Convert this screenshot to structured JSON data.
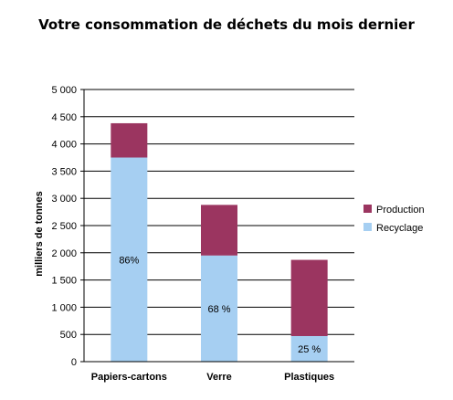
{
  "chart_data": {
    "type": "bar",
    "stacked": true,
    "title": "Votre consommation de déchets du mois dernier",
    "ylabel": "milliers de tonnes",
    "xlabel": "",
    "ylim": [
      0,
      5000
    ],
    "yticks": [
      0,
      500,
      1000,
      1500,
      2000,
      2500,
      3000,
      3500,
      4000,
      4500,
      5000
    ],
    "ytick_labels": [
      "0",
      "500",
      "1 000",
      "1 500",
      "2 000",
      "2 500",
      "3 000",
      "3 500",
      "4 000",
      "4 500",
      "5 000"
    ],
    "grid": true,
    "legend_position": "right",
    "categories": [
      "Papiers-cartons",
      "Verre",
      "Plastiques"
    ],
    "series": [
      {
        "name": "Recyclage",
        "color": "#a6cff2",
        "values": [
          3750,
          1950,
          470
        ],
        "labels": [
          "86%",
          "68 %",
          "25 %"
        ]
      },
      {
        "name": "Production",
        "color": "#9b3560",
        "values": [
          630,
          930,
          1400
        ]
      }
    ],
    "legend_order": [
      "Production",
      "Recyclage"
    ]
  }
}
